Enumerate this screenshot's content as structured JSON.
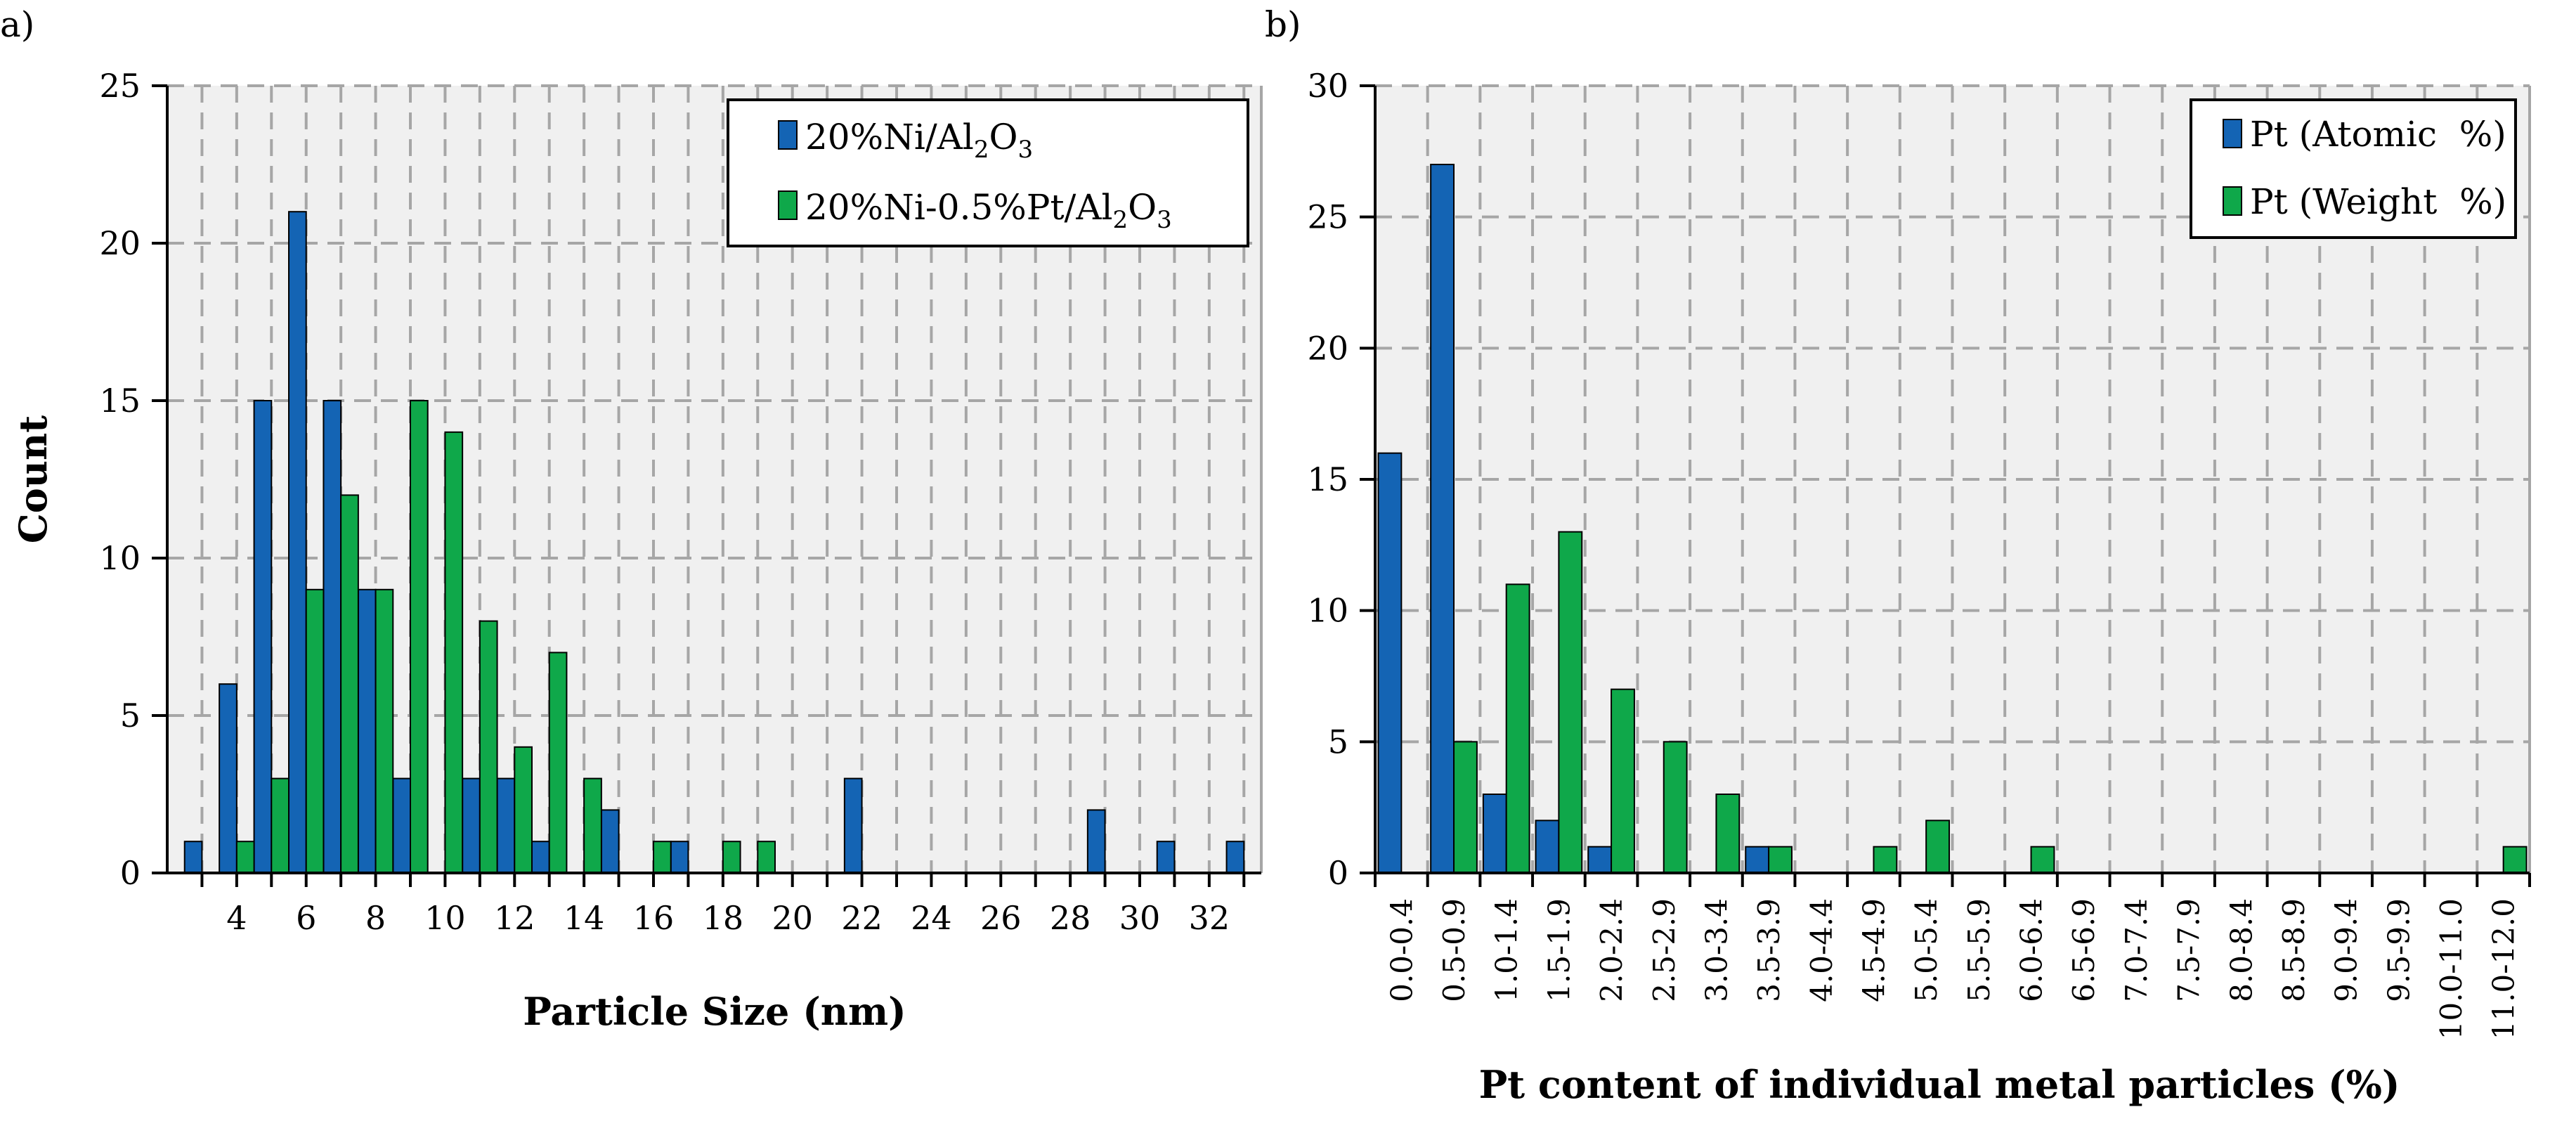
{
  "colors": {
    "series_a": "#1464b4",
    "series_b": "#0fa84a",
    "plot_bg": "#f0f0f0",
    "grid": "#a6a6a6"
  },
  "chart_data": [
    {
      "type": "bar",
      "panel_label": "a)",
      "title": "",
      "xlabel": "Particle Size (nm)",
      "ylabel": "Count",
      "xlim": [
        2,
        33.5
      ],
      "ylim": [
        0,
        25
      ],
      "yticks": [
        "0",
        "5",
        "10",
        "15",
        "20",
        "25"
      ],
      "xticks": [
        "4",
        "6",
        "8",
        "10",
        "12",
        "14",
        "16",
        "18",
        "20",
        "22",
        "24",
        "26",
        "28",
        "30",
        "32"
      ],
      "grid": true,
      "legend_position": "top-right",
      "legend": [
        {
          "prefix": "20%Ni/Al",
          "sub1": "2",
          "mid": "O",
          "sub2": "3"
        },
        {
          "prefix": "20%Ni-0.5%Pt/Al",
          "sub1": "2",
          "mid": "O",
          "sub2": "3"
        }
      ],
      "series": [
        {
          "name": "20%Ni/Al2O3",
          "x": [
            3,
            4,
            5,
            6,
            7,
            8,
            9,
            10,
            11,
            12,
            13,
            14,
            15,
            16,
            17,
            18,
            19,
            20,
            21,
            22,
            23,
            24,
            25,
            26,
            27,
            28,
            29,
            30,
            31,
            32,
            33
          ],
          "values": [
            1,
            6,
            15,
            21,
            15,
            9,
            3,
            0,
            3,
            3,
            1,
            0,
            2,
            0,
            1,
            0,
            0,
            0,
            0,
            3,
            0,
            0,
            0,
            0,
            0,
            0,
            2,
            0,
            1,
            0,
            1
          ]
        },
        {
          "name": "20%Ni-0.5%Pt/Al2O3",
          "x": [
            3,
            4,
            5,
            6,
            7,
            8,
            9,
            10,
            11,
            12,
            13,
            14,
            15,
            16,
            17,
            18,
            19,
            20,
            21,
            22,
            23,
            24,
            25,
            26,
            27,
            28,
            29,
            30,
            31,
            32,
            33
          ],
          "values": [
            0,
            1,
            3,
            9,
            12,
            9,
            15,
            14,
            8,
            4,
            7,
            3,
            0,
            1,
            0,
            1,
            1,
            0,
            0,
            0,
            0,
            0,
            0,
            0,
            0,
            0,
            0,
            0,
            0,
            0,
            0
          ]
        }
      ]
    },
    {
      "type": "bar",
      "panel_label": "b)",
      "title": "",
      "xlabel": "Pt content of individual metal particles (%)",
      "ylabel": "",
      "ylim": [
        0,
        30
      ],
      "yticks": [
        "0",
        "5",
        "10",
        "15",
        "20",
        "25",
        "30"
      ],
      "categories": [
        "0.0-0.4",
        "0.5-0.9",
        "1.0-1.4",
        "1.5-1.9",
        "2.0-2.4",
        "2.5-2.9",
        "3.0-3.4",
        "3.5-3.9",
        "4.0-4.4",
        "4.5-4.9",
        "5.0-5.4",
        "5.5-5.9",
        "6.0-6.4",
        "6.5-6.9",
        "7.0-7.4",
        "7.5-7.9",
        "8.0-8.4",
        "8.5-8.9",
        "9.0-9.4",
        "9.5-9.9",
        "10.0-11.0",
        "11.0-12.0"
      ],
      "grid": true,
      "legend_position": "top-right",
      "legend": [
        "Pt (Atomic  %)",
        "Pt (Weight  %)"
      ],
      "series": [
        {
          "name": "Pt (Atomic  %)",
          "values": [
            16,
            27,
            3,
            2,
            1,
            0,
            0,
            1,
            0,
            0,
            0,
            0,
            0,
            0,
            0,
            0,
            0,
            0,
            0,
            0,
            0,
            0
          ]
        },
        {
          "name": "Pt (Weight  %)",
          "values": [
            0,
            5,
            11,
            13,
            7,
            5,
            3,
            1,
            0,
            1,
            2,
            0,
            1,
            0,
            0,
            0,
            0,
            0,
            0,
            0,
            0,
            1
          ]
        }
      ]
    }
  ]
}
